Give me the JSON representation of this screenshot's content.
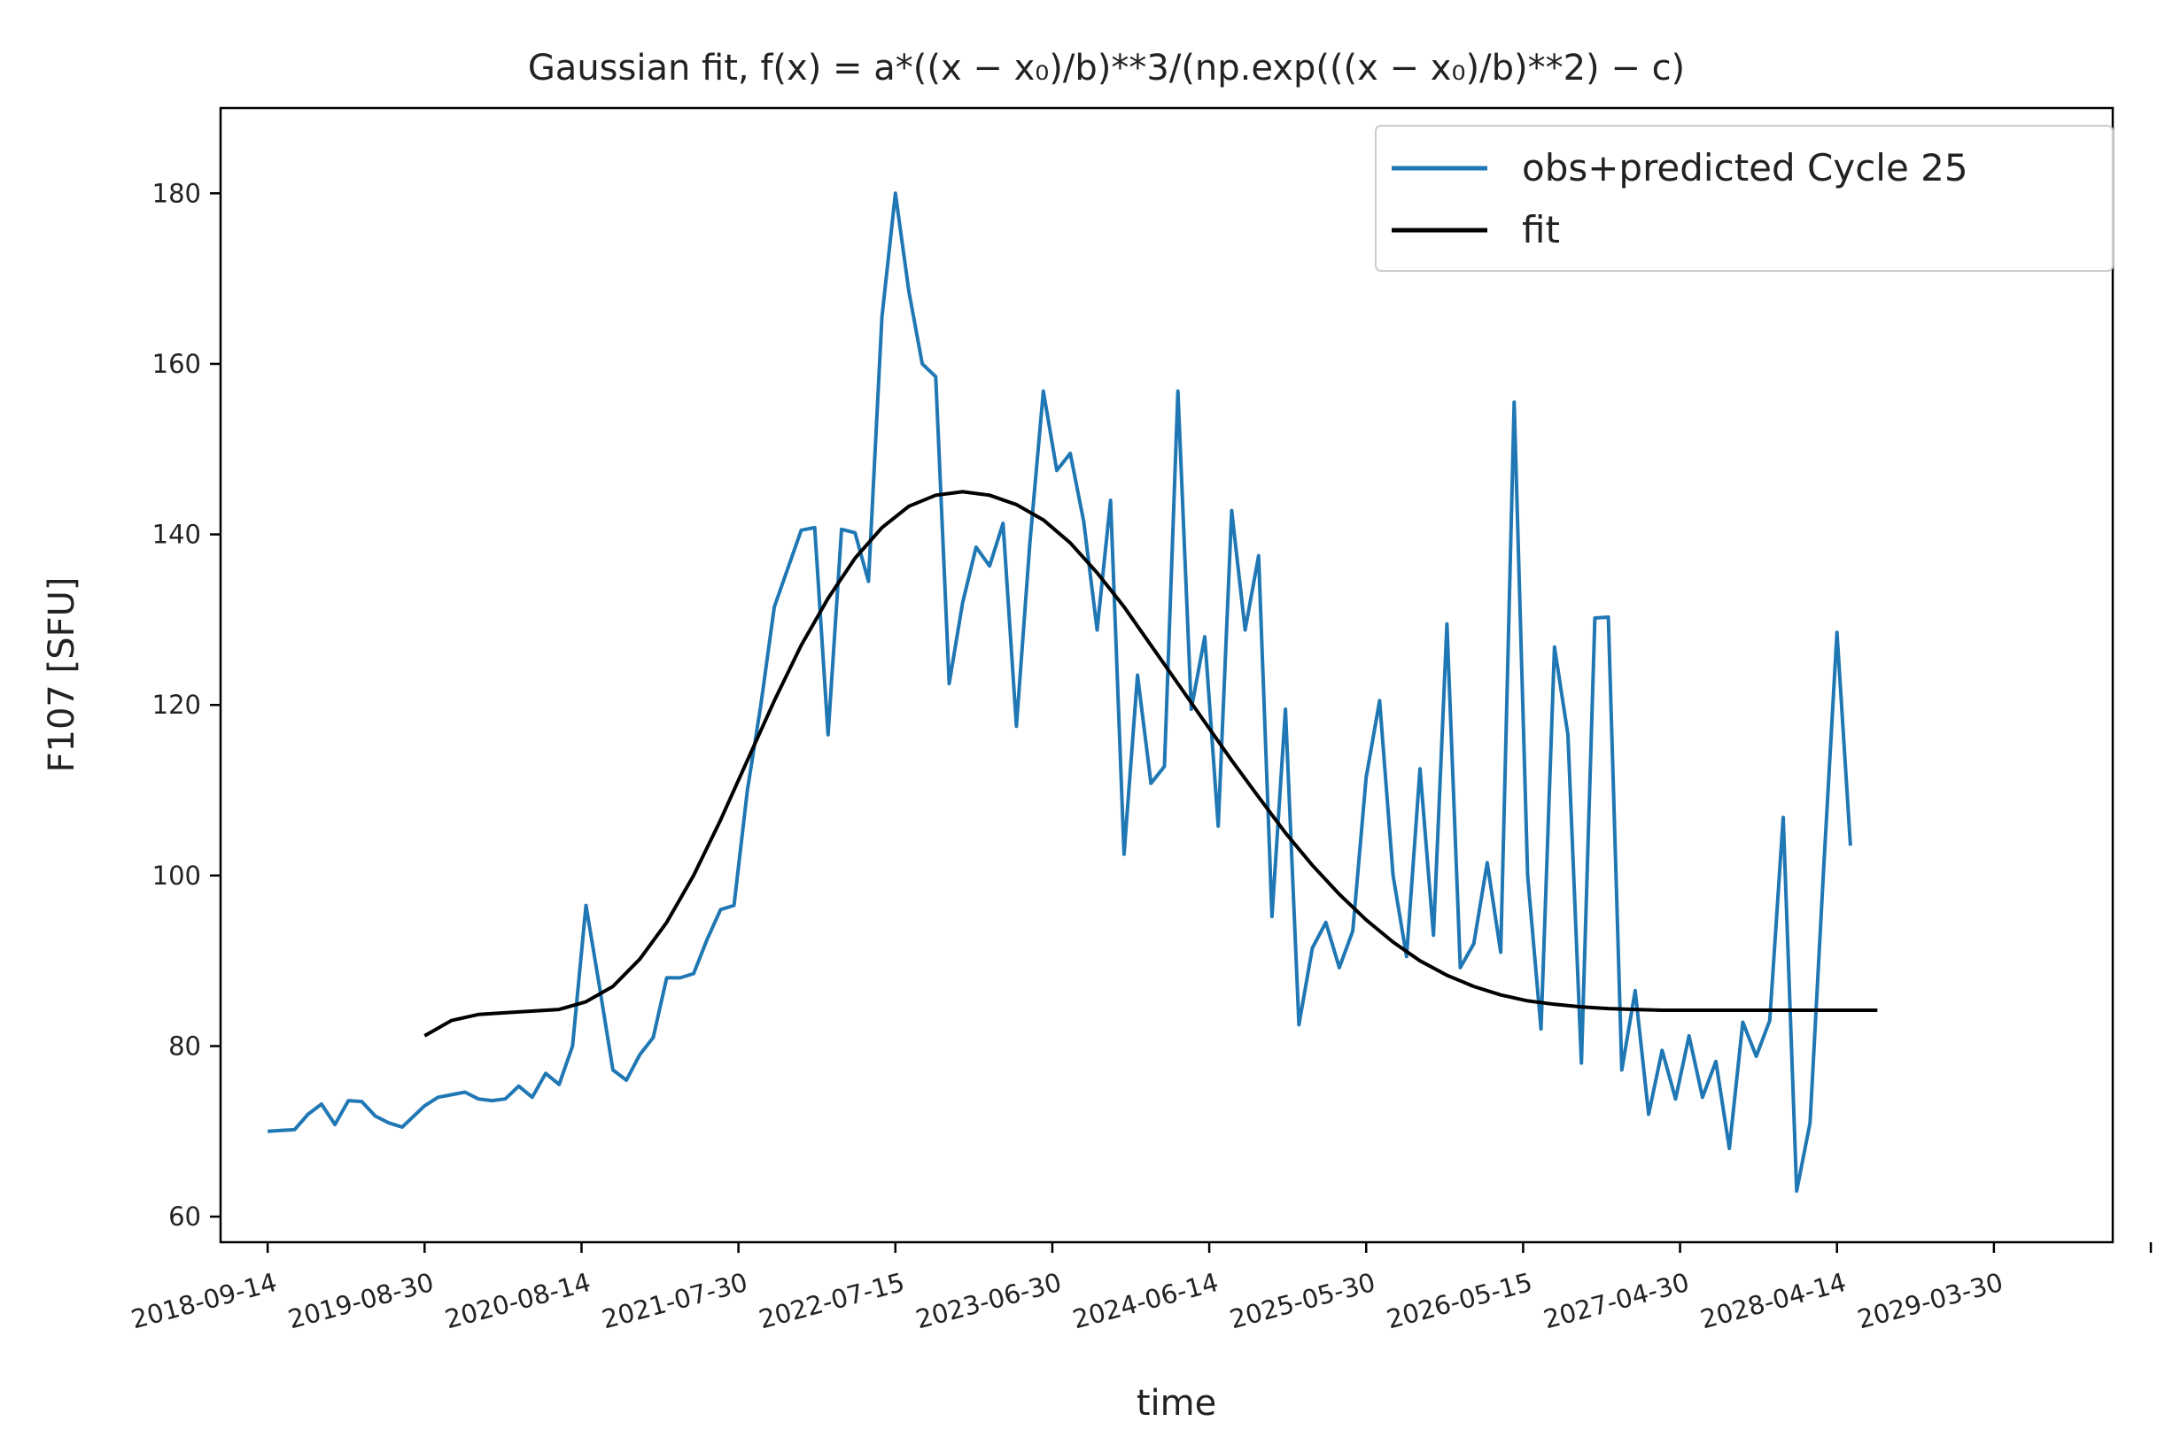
{
  "chart_data": {
    "type": "line",
    "title": "Gaussian fit, f(x) = a*((x − x₀)/b)**3/(np.exp(((x − x₀)/b)**2) − c)",
    "xlabel": "time",
    "ylabel": "F107 [SFU]",
    "xlim": [
      "2018-06-01",
      "2029-12-20"
    ],
    "ylim": [
      57,
      190
    ],
    "x_ticks": [
      "2018-09-14",
      "2019-08-30",
      "2020-08-14",
      "2021-07-30",
      "2022-07-15",
      "2023-06-30",
      "2024-06-14",
      "2025-05-30",
      "2026-05-15",
      "2027-04-30",
      "2028-04-14",
      "2029-03-30",
      "2030-03-15"
    ],
    "x_tick_labels": [
      "2018-09-14",
      "2019-08-30",
      "2020-08-14",
      "2021-07-30",
      "2022-07-15",
      "2023-06-30",
      "2024-06-14",
      "2025-05-30",
      "2026-05-15",
      "2027-04-30",
      "2028-04-14",
      "2029-03-30",
      ""
    ],
    "y_ticks": [
      60,
      80,
      100,
      120,
      140,
      160,
      180
    ],
    "grid": false,
    "legend": {
      "position": "top-right"
    },
    "series": [
      {
        "name": "obs+predicted Cycle 25",
        "color": "#1f77b4",
        "points": [
          [
            "2018-09-14",
            70.0
          ],
          [
            "2018-10-14",
            70.1
          ],
          [
            "2018-11-13",
            70.2
          ],
          [
            "2018-12-13",
            72.0
          ],
          [
            "2019-01-12",
            73.2
          ],
          [
            "2019-02-11",
            70.8
          ],
          [
            "2019-03-13",
            73.6
          ],
          [
            "2019-04-12",
            73.5
          ],
          [
            "2019-05-12",
            71.8
          ],
          [
            "2019-06-11",
            71.0
          ],
          [
            "2019-07-11",
            70.5
          ],
          [
            "2019-08-30",
            73.0
          ],
          [
            "2019-09-29",
            74.0
          ],
          [
            "2019-10-29",
            74.3
          ],
          [
            "2019-11-28",
            74.6
          ],
          [
            "2019-12-28",
            73.8
          ],
          [
            "2020-01-27",
            73.6
          ],
          [
            "2020-02-26",
            73.8
          ],
          [
            "2020-03-27",
            75.3
          ],
          [
            "2020-04-26",
            74.0
          ],
          [
            "2020-05-26",
            76.8
          ],
          [
            "2020-06-25",
            75.5
          ],
          [
            "2020-07-25",
            80.0
          ],
          [
            "2020-08-24",
            96.5
          ],
          [
            "2020-09-23",
            87.0
          ],
          [
            "2020-10-23",
            77.2
          ],
          [
            "2020-11-22",
            76.0
          ],
          [
            "2020-12-22",
            79.0
          ],
          [
            "2021-01-21",
            81.0
          ],
          [
            "2021-02-20",
            88.0
          ],
          [
            "2021-03-22",
            88.0
          ],
          [
            "2021-04-21",
            88.5
          ],
          [
            "2021-05-21",
            92.5
          ],
          [
            "2021-06-20",
            96.0
          ],
          [
            "2021-07-20",
            96.5
          ],
          [
            "2021-08-19",
            110.0
          ],
          [
            "2021-09-18",
            120.0
          ],
          [
            "2021-10-18",
            131.5
          ],
          [
            "2021-11-17",
            136.0
          ],
          [
            "2021-12-17",
            140.5
          ],
          [
            "2022-01-16",
            140.8
          ],
          [
            "2022-02-15",
            116.5
          ],
          [
            "2022-03-17",
            140.6
          ],
          [
            "2022-04-16",
            140.2
          ],
          [
            "2022-05-16",
            134.5
          ],
          [
            "2022-06-15",
            165.5
          ],
          [
            "2022-07-15",
            180.0
          ],
          [
            "2022-08-14",
            168.5
          ],
          [
            "2022-09-13",
            160.0
          ],
          [
            "2022-10-13",
            158.5
          ],
          [
            "2022-11-12",
            122.5
          ],
          [
            "2022-12-12",
            132.0
          ],
          [
            "2023-01-11",
            138.5
          ],
          [
            "2023-02-10",
            136.3
          ],
          [
            "2023-03-12",
            141.3
          ],
          [
            "2023-04-11",
            117.5
          ],
          [
            "2023-05-11",
            139.0
          ],
          [
            "2023-06-10",
            156.8
          ],
          [
            "2023-07-10",
            147.5
          ],
          [
            "2023-08-09",
            149.5
          ],
          [
            "2023-09-08",
            141.5
          ],
          [
            "2023-10-08",
            128.8
          ],
          [
            "2023-11-07",
            144.0
          ],
          [
            "2023-12-07",
            102.5
          ],
          [
            "2024-01-06",
            123.5
          ],
          [
            "2024-02-05",
            110.8
          ],
          [
            "2024-03-06",
            112.8
          ],
          [
            "2024-04-05",
            156.8
          ],
          [
            "2024-05-05",
            119.5
          ],
          [
            "2024-06-04",
            128.0
          ],
          [
            "2024-07-04",
            105.8
          ],
          [
            "2024-08-03",
            142.8
          ],
          [
            "2024-09-02",
            128.8
          ],
          [
            "2024-10-02",
            137.5
          ],
          [
            "2024-11-01",
            95.2
          ],
          [
            "2024-12-01",
            119.5
          ],
          [
            "2024-12-31",
            82.5
          ],
          [
            "2025-01-30",
            91.5
          ],
          [
            "2025-03-01",
            94.5
          ],
          [
            "2025-03-31",
            89.2
          ],
          [
            "2025-04-30",
            93.5
          ],
          [
            "2025-05-30",
            111.5
          ],
          [
            "2025-06-29",
            120.5
          ],
          [
            "2025-07-29",
            100.0
          ],
          [
            "2025-08-28",
            90.5
          ],
          [
            "2025-09-27",
            112.5
          ],
          [
            "2025-10-27",
            93.0
          ],
          [
            "2025-11-26",
            129.5
          ],
          [
            "2025-12-26",
            89.2
          ],
          [
            "2026-01-25",
            92.0
          ],
          [
            "2026-02-24",
            101.5
          ],
          [
            "2026-03-26",
            91.0
          ],
          [
            "2026-04-25",
            155.5
          ],
          [
            "2026-05-25",
            100.0
          ],
          [
            "2026-06-24",
            82.0
          ],
          [
            "2026-07-24",
            126.8
          ],
          [
            "2026-08-23",
            116.5
          ],
          [
            "2026-09-22",
            78.0
          ],
          [
            "2026-10-22",
            130.2
          ],
          [
            "2026-11-21",
            130.3
          ],
          [
            "2026-12-21",
            77.2
          ],
          [
            "2027-01-20",
            86.5
          ],
          [
            "2027-02-19",
            72.0
          ],
          [
            "2027-03-21",
            79.5
          ],
          [
            "2027-04-20",
            73.8
          ],
          [
            "2027-05-20",
            81.2
          ],
          [
            "2027-06-19",
            74.0
          ],
          [
            "2027-07-19",
            78.2
          ],
          [
            "2027-08-18",
            68.0
          ],
          [
            "2027-09-17",
            82.8
          ],
          [
            "2027-10-17",
            78.8
          ],
          [
            "2027-11-16",
            83.0
          ],
          [
            "2027-12-16",
            106.8
          ],
          [
            "2028-01-15",
            63.0
          ],
          [
            "2028-02-14",
            71.0
          ],
          [
            "2028-03-15",
            100.5
          ],
          [
            "2028-04-14",
            128.5
          ],
          [
            "2028-05-14",
            103.5
          ]
        ]
      },
      {
        "name": "fit",
        "color": "#000000",
        "points": [
          [
            "2019-08-30",
            81.2
          ],
          [
            "2019-10-29",
            83.0
          ],
          [
            "2019-12-28",
            83.7
          ],
          [
            "2020-03-27",
            84.0
          ],
          [
            "2020-06-25",
            84.3
          ],
          [
            "2020-08-24",
            85.2
          ],
          [
            "2020-10-23",
            87.0
          ],
          [
            "2020-12-22",
            90.2
          ],
          [
            "2021-02-20",
            94.5
          ],
          [
            "2021-04-21",
            100.0
          ],
          [
            "2021-06-20",
            106.5
          ],
          [
            "2021-08-19",
            113.5
          ],
          [
            "2021-10-18",
            120.5
          ],
          [
            "2021-12-17",
            127.0
          ],
          [
            "2022-02-15",
            132.5
          ],
          [
            "2022-04-16",
            137.2
          ],
          [
            "2022-06-15",
            140.8
          ],
          [
            "2022-08-14",
            143.3
          ],
          [
            "2022-10-13",
            144.6
          ],
          [
            "2022-12-12",
            145.0
          ],
          [
            "2023-02-10",
            144.6
          ],
          [
            "2023-04-11",
            143.5
          ],
          [
            "2023-06-10",
            141.7
          ],
          [
            "2023-08-09",
            139.0
          ],
          [
            "2023-10-08",
            135.5
          ],
          [
            "2023-12-07",
            131.5
          ],
          [
            "2024-02-05",
            127.0
          ],
          [
            "2024-04-05",
            122.5
          ],
          [
            "2024-06-04",
            118.0
          ],
          [
            "2024-08-03",
            113.5
          ],
          [
            "2024-10-02",
            109.2
          ],
          [
            "2024-12-01",
            105.0
          ],
          [
            "2025-01-30",
            101.2
          ],
          [
            "2025-03-31",
            97.8
          ],
          [
            "2025-05-30",
            94.8
          ],
          [
            "2025-07-29",
            92.2
          ],
          [
            "2025-09-27",
            90.0
          ],
          [
            "2025-11-26",
            88.3
          ],
          [
            "2026-01-25",
            87.0
          ],
          [
            "2026-03-26",
            86.0
          ],
          [
            "2026-05-25",
            85.3
          ],
          [
            "2026-07-24",
            84.9
          ],
          [
            "2026-09-22",
            84.6
          ],
          [
            "2026-11-21",
            84.4
          ],
          [
            "2027-01-20",
            84.3
          ],
          [
            "2027-03-21",
            84.2
          ],
          [
            "2027-05-20",
            84.2
          ],
          [
            "2027-07-19",
            84.2
          ],
          [
            "2027-09-17",
            84.2
          ],
          [
            "2027-11-16",
            84.2
          ],
          [
            "2028-01-15",
            84.2
          ],
          [
            "2028-03-15",
            84.2
          ],
          [
            "2028-05-14",
            84.2
          ],
          [
            "2028-07-13",
            84.2
          ]
        ]
      }
    ]
  }
}
